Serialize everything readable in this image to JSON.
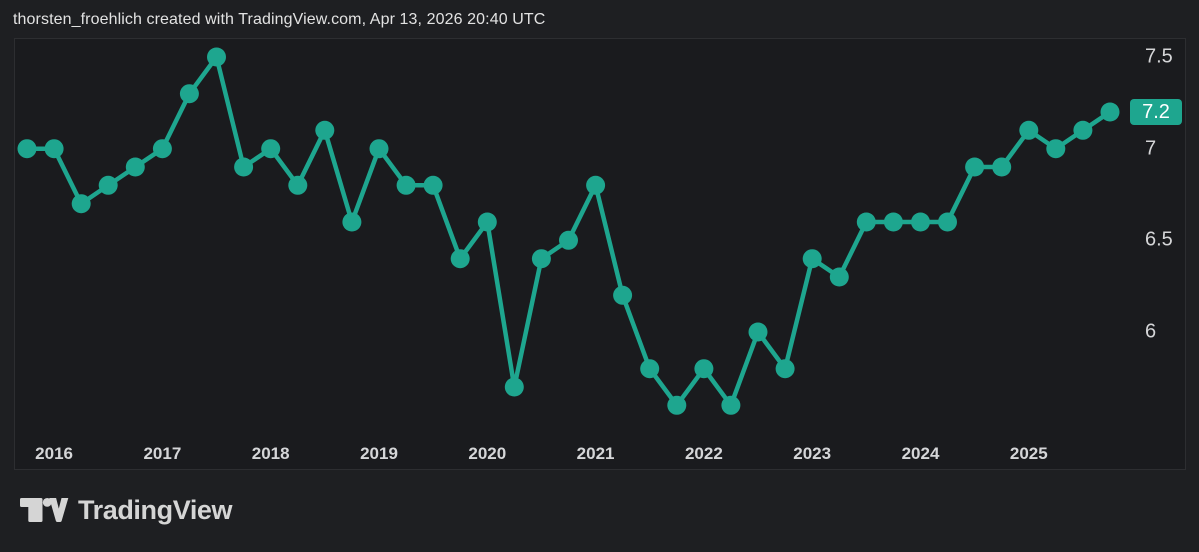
{
  "header": {
    "attribution": "thorsten_froehlich created with TradingView.com, Apr 13, 2026 20:40 UTC"
  },
  "colors": {
    "accent_teal": "#1EA68F",
    "page_background": "#1E1F22",
    "pane_background": "#1A1B1E",
    "pane_border": "#2D2E31",
    "header_text": "#E2E2E2",
    "axis_text": "#D5D6D8",
    "badge_text": "#FFFFFF",
    "logo_color": "#D5D5D5"
  },
  "chart_data": {
    "type": "line",
    "marker": "circle",
    "grid": false,
    "legend_position": "none",
    "x": [
      "2015 Q4",
      "2016 Q1",
      "2016 Q2",
      "2016 Q3",
      "2016 Q4",
      "2017 Q1",
      "2017 Q2",
      "2017 Q3",
      "2017 Q4",
      "2018 Q1",
      "2018 Q2",
      "2018 Q3",
      "2018 Q4",
      "2019 Q1",
      "2019 Q2",
      "2019 Q3",
      "2019 Q4",
      "2020 Q1",
      "2020 Q2",
      "2020 Q3",
      "2020 Q4",
      "2021 Q1",
      "2021 Q2",
      "2021 Q3",
      "2021 Q4",
      "2022 Q1",
      "2022 Q2",
      "2022 Q3",
      "2022 Q4",
      "2023 Q1",
      "2023 Q2",
      "2023 Q3",
      "2023 Q4",
      "2024 Q1",
      "2024 Q2",
      "2024 Q3",
      "2024 Q4",
      "2025 Q1",
      "2025 Q2",
      "2025 Q3",
      "2025 Q4"
    ],
    "values": [
      7.0,
      7.0,
      6.7,
      6.8,
      6.9,
      7.0,
      7.3,
      7.5,
      6.9,
      7.0,
      6.8,
      7.1,
      6.6,
      7.0,
      6.8,
      6.8,
      6.4,
      6.6,
      5.7,
      6.4,
      6.5,
      6.8,
      6.2,
      5.8,
      5.6,
      5.8,
      5.6,
      6.0,
      5.8,
      6.4,
      6.3,
      6.6,
      6.6,
      6.6,
      6.6,
      6.9,
      6.9,
      7.1,
      7.0,
      7.1,
      7.2
    ],
    "x_tick_labels": [
      "2016",
      "2017",
      "2018",
      "2019",
      "2020",
      "2021",
      "2022",
      "2023",
      "2024",
      "2025"
    ],
    "x_tick_indices": [
      1,
      5,
      9,
      13,
      17,
      21,
      25,
      29,
      33,
      37
    ],
    "y_ticks": [
      7.5,
      7,
      6.5,
      6
    ],
    "y_tick_labels": [
      "7.5",
      "7",
      "6.5",
      "6"
    ],
    "ylim": [
      5.25,
      7.6
    ],
    "last_value": 7.2,
    "last_value_label": "7.2"
  },
  "logo": {
    "brand": "TradingView"
  }
}
